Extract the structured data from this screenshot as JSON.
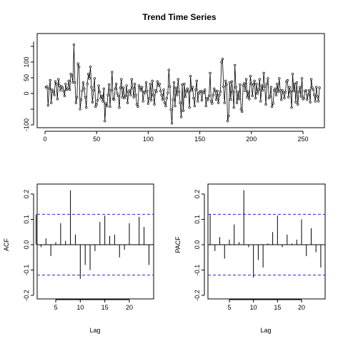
{
  "chart_data": [
    {
      "type": "line",
      "title": "Trend Time Series",
      "xlabel": "",
      "ylabel": "",
      "xlim": [
        0,
        264
      ],
      "ylim": [
        -100,
        165
      ],
      "x_ticks": [
        0,
        50,
        100,
        150,
        200,
        250
      ],
      "y_ticks": [
        -100,
        0,
        50,
        100
      ],
      "grid": false,
      "markers": "points",
      "series": [
        {
          "values": [
            20,
            22,
            -38,
            15,
            42,
            -30,
            12,
            5,
            -5,
            38,
            30,
            -18,
            45,
            25,
            10,
            22,
            18,
            8,
            -8,
            30,
            12,
            15,
            40,
            12,
            62,
            58,
            35,
            155,
            35,
            -30,
            -12,
            95,
            85,
            -50,
            -20,
            8,
            35,
            15,
            -12,
            -45,
            30,
            62,
            48,
            85,
            20,
            -28,
            10,
            48,
            -42,
            -35,
            -22,
            25,
            5,
            -15,
            -8,
            -25,
            15,
            -88,
            -32,
            -40,
            -5,
            28,
            -42,
            10,
            68,
            -18,
            -20,
            15,
            30,
            0,
            -8,
            -45,
            18,
            45,
            -12,
            18,
            -15,
            -8,
            25,
            -30,
            5,
            10,
            -5,
            45,
            18,
            -12,
            30,
            -5,
            -35,
            -42,
            25,
            18,
            10,
            20,
            -25,
            5,
            2,
            35,
            8,
            -32,
            -15,
            30,
            -22,
            40,
            -5,
            -35,
            10,
            5,
            38,
            25,
            30,
            8,
            -5,
            -20,
            12,
            -30,
            -40,
            -15,
            2,
            75,
            22,
            -52,
            -95,
            -20,
            35,
            -40,
            18,
            -5,
            45,
            5,
            -30,
            -75,
            28,
            -55,
            30,
            -10,
            8,
            15,
            5,
            -45,
            55,
            10,
            20,
            -15,
            -40,
            12,
            40,
            -25,
            0,
            5,
            8,
            -22,
            5,
            2,
            12,
            -40,
            -15,
            -20,
            -8,
            65,
            -25,
            -32,
            -5,
            15,
            8,
            -20,
            8,
            -30,
            -5,
            5,
            100,
            110,
            22,
            -30,
            40,
            28,
            -88,
            -72,
            35,
            -20,
            38,
            5,
            -45,
            90,
            20,
            -30,
            5,
            -18,
            28,
            -50,
            -58,
            25,
            32,
            8,
            45,
            -12,
            5,
            -18,
            55,
            30,
            -8,
            28,
            40,
            -15,
            30,
            0,
            12,
            45,
            -25,
            25,
            10,
            65,
            22,
            -35,
            30,
            48,
            -15,
            -10,
            20,
            -42,
            -32,
            10,
            15,
            -5,
            30,
            5,
            48,
            10,
            -20,
            10,
            2,
            -15,
            5,
            38,
            42,
            -12,
            20,
            5,
            -45,
            62,
            8,
            30,
            -28,
            35,
            -35,
            5,
            20,
            -10,
            48,
            -18,
            -15,
            8,
            10,
            -20,
            -5,
            10,
            -28,
            45,
            18,
            12,
            -5,
            -25,
            20,
            -10,
            -25,
            18
          ]
        }
      ]
    },
    {
      "type": "bar",
      "title": "",
      "xlabel": "Lag",
      "ylabel": "ACF",
      "xlim": [
        0,
        25
      ],
      "ylim": [
        -0.2,
        0.22
      ],
      "x_ticks": [
        5,
        10,
        15,
        20
      ],
      "y_ticks": [
        -0.2,
        -0.1,
        0.0,
        0.1,
        0.2
      ],
      "x_tick_labels": [
        "5",
        "10",
        "15",
        "20"
      ],
      "y_tick_labels": [
        "-0.2",
        "-0.1",
        "0.0",
        "0.1",
        "0.2"
      ],
      "confidence_bound": 0.12,
      "bound_color": "#2020ff",
      "lags": [
        1,
        2,
        3,
        4,
        5,
        6,
        7,
        8,
        9,
        10,
        11,
        12,
        13,
        14,
        15,
        16,
        17,
        18,
        19,
        20,
        21,
        22,
        23,
        24
      ],
      "values": [
        0.12,
        -0.01,
        0.025,
        -0.045,
        0.01,
        0.085,
        0.015,
        0.215,
        0.04,
        -0.135,
        -0.08,
        -0.1,
        -0.025,
        0.09,
        0.115,
        0.035,
        0.04,
        -0.05,
        -0.02,
        0.085,
        0.0,
        0.11,
        0.07,
        -0.08
      ]
    },
    {
      "type": "bar",
      "title": "",
      "xlabel": "Lag",
      "ylabel": "PACF",
      "xlim": [
        0,
        25
      ],
      "ylim": [
        -0.2,
        0.22
      ],
      "x_ticks": [
        5,
        10,
        15,
        20
      ],
      "y_ticks": [
        -0.2,
        -0.1,
        0.0,
        0.1,
        0.2
      ],
      "x_tick_labels": [
        "5",
        "10",
        "15",
        "20"
      ],
      "y_tick_labels": [
        "-0.2",
        "-0.1",
        "0.0",
        "0.1",
        "0.2"
      ],
      "confidence_bound": 0.12,
      "bound_color": "#2020ff",
      "lags": [
        1,
        2,
        3,
        4,
        5,
        6,
        7,
        8,
        9,
        10,
        11,
        12,
        13,
        14,
        15,
        16,
        17,
        18,
        19,
        20,
        21,
        22,
        23,
        24
      ],
      "values": [
        0.12,
        -0.025,
        0.03,
        -0.055,
        0.02,
        0.08,
        0.01,
        0.215,
        -0.01,
        -0.13,
        -0.06,
        -0.09,
        0.005,
        0.05,
        0.115,
        -0.01,
        0.04,
        0.005,
        0.02,
        0.1,
        -0.045,
        0.065,
        -0.03,
        -0.09
      ]
    }
  ]
}
